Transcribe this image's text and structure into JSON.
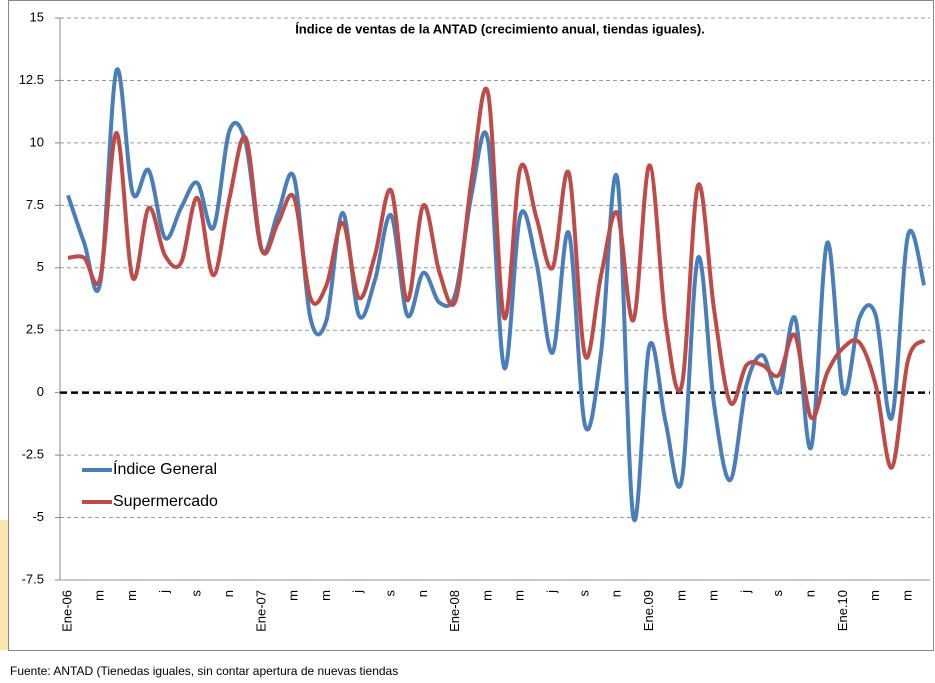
{
  "chart_data": {
    "type": "line",
    "title": "Índice de ventas de la ANTAD (crecimiento anual, tiendas iguales).",
    "note": "Fuente: ANTAD (Tienedas iguales, sin contar  apertura de nuevas tiendas",
    "categories": [
      "Ene-06",
      null,
      "m",
      null,
      "m",
      null,
      "j",
      null,
      "s",
      null,
      "n",
      null,
      "Ene-07",
      null,
      "m",
      null,
      "m",
      null,
      "j",
      null,
      "s",
      null,
      "n",
      null,
      "Ene-08",
      null,
      "m",
      null,
      "m",
      null,
      "j",
      null,
      "s",
      null,
      "n",
      null,
      "Ene.09",
      null,
      "m",
      null,
      "m",
      null,
      "j",
      null,
      "s",
      null,
      "n",
      null,
      "Ene.10",
      null,
      "m",
      null,
      "m",
      null
    ],
    "series": [
      {
        "name": "Índice General",
        "color": "#4a7ebb",
        "values": [
          7.9,
          6.0,
          4.4,
          12.9,
          8.0,
          8.9,
          6.2,
          7.4,
          8.4,
          6.6,
          10.5,
          10.0,
          5.7,
          7.2,
          8.6,
          3.0,
          2.9,
          7.2,
          3.1,
          4.5,
          7.1,
          3.1,
          4.8,
          3.6,
          4.0,
          8.0,
          10.1,
          1.0,
          7.1,
          5.2,
          1.6,
          6.4,
          -1.3,
          1.6,
          8.6,
          -5.0,
          1.9,
          -1.2,
          -3.5,
          5.4,
          -0.5,
          -3.5,
          0.3,
          1.5,
          0.0,
          3.0,
          -2.2,
          6.0,
          0.0,
          3.0,
          3.1,
          -1.0,
          6.3,
          4.3
        ]
      },
      {
        "name": "Supermercado",
        "color": "#be4b48",
        "values": [
          5.4,
          5.4,
          4.6,
          10.4,
          4.6,
          7.4,
          5.5,
          5.2,
          7.8,
          4.7,
          7.8,
          10.2,
          5.7,
          6.8,
          7.8,
          3.8,
          4.3,
          6.8,
          3.8,
          5.5,
          8.1,
          3.7,
          7.5,
          4.8,
          3.7,
          8.6,
          12.0,
          3.0,
          9.0,
          7.0,
          5.0,
          8.8,
          1.5,
          4.7,
          7.2,
          2.9,
          9.1,
          2.8,
          0.3,
          8.3,
          3.3,
          -0.4,
          1.1,
          1.1,
          0.7,
          2.3,
          -1.0,
          0.8,
          1.8,
          2.0,
          0.3,
          -3.0,
          1.3,
          2.1
        ]
      }
    ],
    "ylim": [
      -7.5,
      15
    ],
    "yticks": [
      -7.5,
      -5,
      -2.5,
      0,
      2.5,
      5,
      7.5,
      10,
      12.5,
      15
    ],
    "grid": true,
    "zero_line": true,
    "legend": "lower left"
  }
}
